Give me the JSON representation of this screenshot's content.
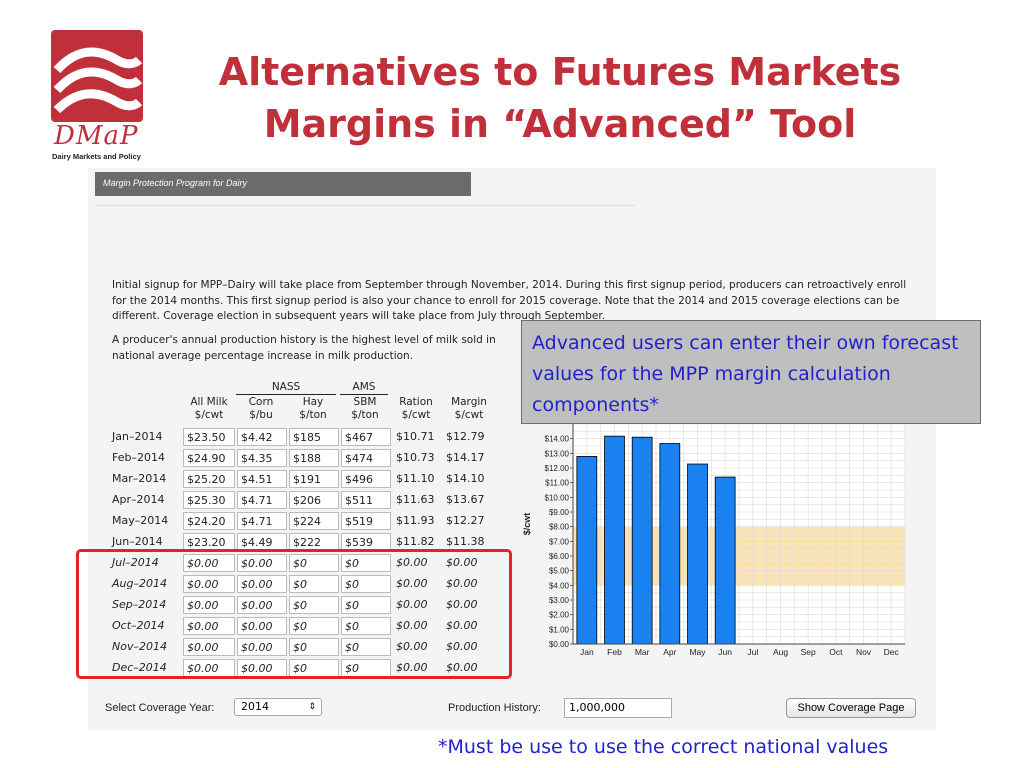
{
  "logo": {
    "name": "DMaP",
    "subtitle": "Dairy Markets and Policy"
  },
  "slide": {
    "title_line1": "Alternatives to Futures Markets",
    "title_line2": "Margins in “Advanced” Tool"
  },
  "app": {
    "bar_title": "Margin Protection Program for Dairy",
    "para1": "Initial signup for MPP–Dairy will take place from September through November, 2014. During this first signup period, producers can retroactively enroll for the 2014 months. This first signup period is also your chance to enroll for 2015 coverage. Note that the 2014 and 2015 coverage elections can be different. Coverage election in subsequent years will take place from July through September.",
    "para2": "A producer's annual production history is the highest level of milk sold in national average percentage increase in milk production."
  },
  "table": {
    "group_nass": "NASS",
    "group_ams": "AMS",
    "columns": [
      {
        "l1": "All Milk",
        "l2": "$/cwt"
      },
      {
        "l1": "Corn",
        "l2": "$/bu"
      },
      {
        "l1": "Hay",
        "l2": "$/ton"
      },
      {
        "l1": "SBM",
        "l2": "$/ton"
      },
      {
        "l1": "Ration",
        "l2": "$/cwt"
      },
      {
        "l1": "Margin",
        "l2": "$/cwt"
      }
    ],
    "rows": [
      {
        "month": "Jan–2014",
        "milk": "$23.50",
        "corn": "$4.42",
        "hay": "$185",
        "sbm": "$467",
        "ration": "$10.71",
        "margin": "$12.79"
      },
      {
        "month": "Feb–2014",
        "milk": "$24.90",
        "corn": "$4.35",
        "hay": "$188",
        "sbm": "$474",
        "ration": "$10.73",
        "margin": "$14.17"
      },
      {
        "month": "Mar–2014",
        "milk": "$25.20",
        "corn": "$4.51",
        "hay": "$191",
        "sbm": "$496",
        "ration": "$11.10",
        "margin": "$14.10"
      },
      {
        "month": "Apr–2014",
        "milk": "$25.30",
        "corn": "$4.71",
        "hay": "$206",
        "sbm": "$511",
        "ration": "$11.63",
        "margin": "$13.67"
      },
      {
        "month": "May–2014",
        "milk": "$24.20",
        "corn": "$4.71",
        "hay": "$224",
        "sbm": "$519",
        "ration": "$11.93",
        "margin": "$12.27"
      },
      {
        "month": "Jun–2014",
        "milk": "$23.20",
        "corn": "$4.49",
        "hay": "$222",
        "sbm": "$539",
        "ration": "$11.82",
        "margin": "$11.38"
      },
      {
        "month": "Jul–2014",
        "milk": "$0.00",
        "corn": "$0.00",
        "hay": "$0",
        "sbm": "$0",
        "ration": "$0.00",
        "margin": "$0.00"
      },
      {
        "month": "Aug–2014",
        "milk": "$0.00",
        "corn": "$0.00",
        "hay": "$0",
        "sbm": "$0",
        "ration": "$0.00",
        "margin": "$0.00"
      },
      {
        "month": "Sep–2014",
        "milk": "$0.00",
        "corn": "$0.00",
        "hay": "$0",
        "sbm": "$0",
        "ration": "$0.00",
        "margin": "$0.00"
      },
      {
        "month": "Oct–2014",
        "milk": "$0.00",
        "corn": "$0.00",
        "hay": "$0",
        "sbm": "$0",
        "ration": "$0.00",
        "margin": "$0.00"
      },
      {
        "month": "Nov–2014",
        "milk": "$0.00",
        "corn": "$0.00",
        "hay": "$0",
        "sbm": "$0",
        "ration": "$0.00",
        "margin": "$0.00"
      },
      {
        "month": "Dec–2014",
        "milk": "$0.00",
        "corn": "$0.00",
        "hay": "$0",
        "sbm": "$0",
        "ration": "$0.00",
        "margin": "$0.00"
      }
    ]
  },
  "callout": "Advanced users can enter their own forecast values for the MPP margin calculation components*",
  "controls": {
    "coverage_year_label": "Select Coverage Year:",
    "coverage_year_value": "2014",
    "production_history_label": "Production History:",
    "production_history_value": "1,000,000",
    "show_coverage_button": "Show Coverage Page"
  },
  "footnote": "*Must be use to use the correct national values",
  "chart_data": {
    "type": "bar",
    "ylabel": "$/cwt",
    "categories": [
      "Jan",
      "Feb",
      "Mar",
      "Apr",
      "May",
      "Jun",
      "Jul",
      "Aug",
      "Sep",
      "Oct",
      "Nov",
      "Dec"
    ],
    "values": [
      12.79,
      14.17,
      14.1,
      13.67,
      12.27,
      11.38,
      0,
      0,
      0,
      0,
      0,
      0
    ],
    "ylim": [
      0,
      15
    ],
    "ticks": [
      "$0.00",
      "$1.00",
      "$2.00",
      "$3.00",
      "$4.00",
      "$5.00",
      "$6.00",
      "$7.00",
      "$8.00",
      "$9.00",
      "$10.00",
      "$11.00",
      "$12.00",
      "$13.00",
      "$14.00"
    ],
    "coverage_band": [
      4.0,
      8.0
    ],
    "bar_color": "#1a82f0",
    "band_color": "#fbe3b6",
    "grid": true
  }
}
